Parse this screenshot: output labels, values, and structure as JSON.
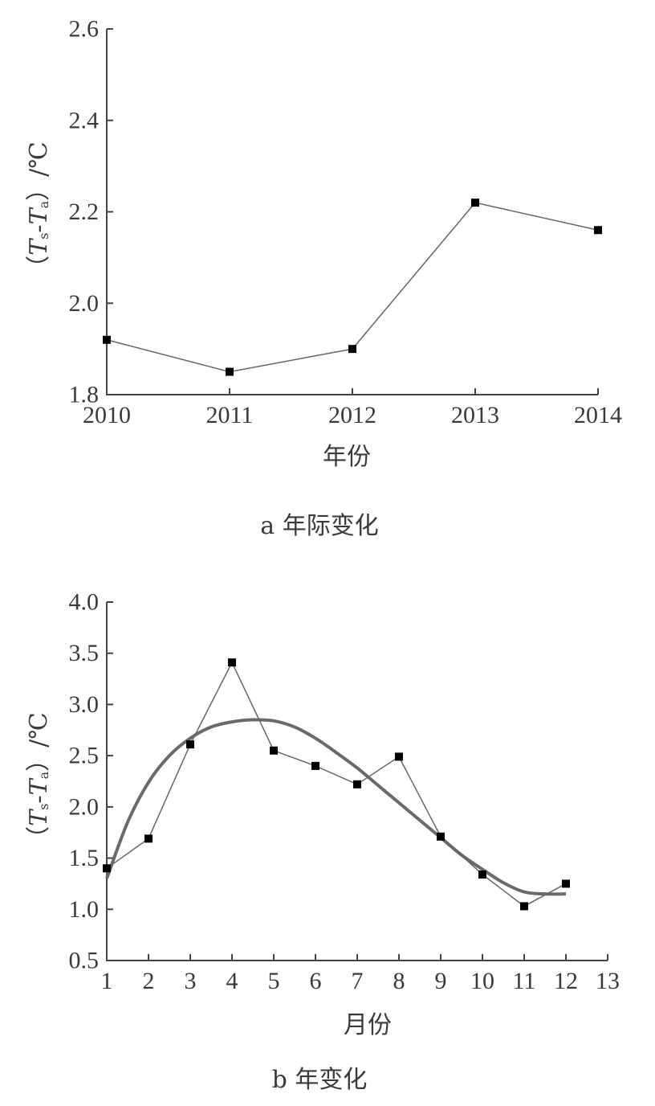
{
  "chart_data": [
    {
      "type": "line",
      "caption": "a 年际变化",
      "xlabel": "年份",
      "ylabel_parts": {
        "open": "（",
        "T1": "T",
        "s": "s",
        "dash": "-",
        "T2": "T",
        "a": "a",
        "close": "）",
        "unit": "/℃"
      },
      "categories": [
        "2010",
        "2011",
        "2012",
        "2013",
        "2014"
      ],
      "values": [
        1.92,
        1.85,
        1.9,
        2.22,
        2.16
      ],
      "ylim": [
        1.8,
        2.6
      ],
      "yticks": [
        "1.8",
        "2.0",
        "2.2",
        "2.4",
        "2.6"
      ],
      "grid": false,
      "legend": "none"
    },
    {
      "type": "line",
      "caption": "b 年变化",
      "xlabel": "月份",
      "ylabel_parts": {
        "open": "（",
        "T1": "T",
        "s": "s",
        "dash": "-",
        "T2": "T",
        "a": "a",
        "close": "）",
        "unit": "/℃"
      },
      "x": [
        1,
        2,
        3,
        4,
        5,
        6,
        7,
        8,
        9,
        10,
        11,
        12
      ],
      "values": [
        1.4,
        1.69,
        2.61,
        3.41,
        2.55,
        2.4,
        2.22,
        2.49,
        1.71,
        1.34,
        1.03,
        1.25
      ],
      "fit": {
        "x": [
          1,
          1.5,
          2,
          2.5,
          3,
          3.5,
          4,
          4.5,
          5,
          5.5,
          6,
          6.5,
          7,
          7.5,
          8,
          8.5,
          9,
          9.5,
          10,
          10.5,
          11,
          11.5,
          12
        ],
        "y": [
          1.3,
          1.85,
          2.24,
          2.5,
          2.67,
          2.78,
          2.83,
          2.85,
          2.84,
          2.78,
          2.67,
          2.53,
          2.38,
          2.21,
          2.04,
          1.87,
          1.7,
          1.53,
          1.39,
          1.26,
          1.17,
          1.15,
          1.15
        ]
      },
      "xlim": [
        1,
        13
      ],
      "xticks": [
        "1",
        "2",
        "3",
        "4",
        "5",
        "6",
        "7",
        "8",
        "9",
        "10",
        "11",
        "12",
        "13"
      ],
      "ylim": [
        0.5,
        4.0
      ],
      "yticks": [
        "0.5",
        "1.0",
        "1.5",
        "2.0",
        "2.5",
        "3.0",
        "3.5",
        "4.0"
      ],
      "grid": false,
      "legend": "none"
    }
  ]
}
